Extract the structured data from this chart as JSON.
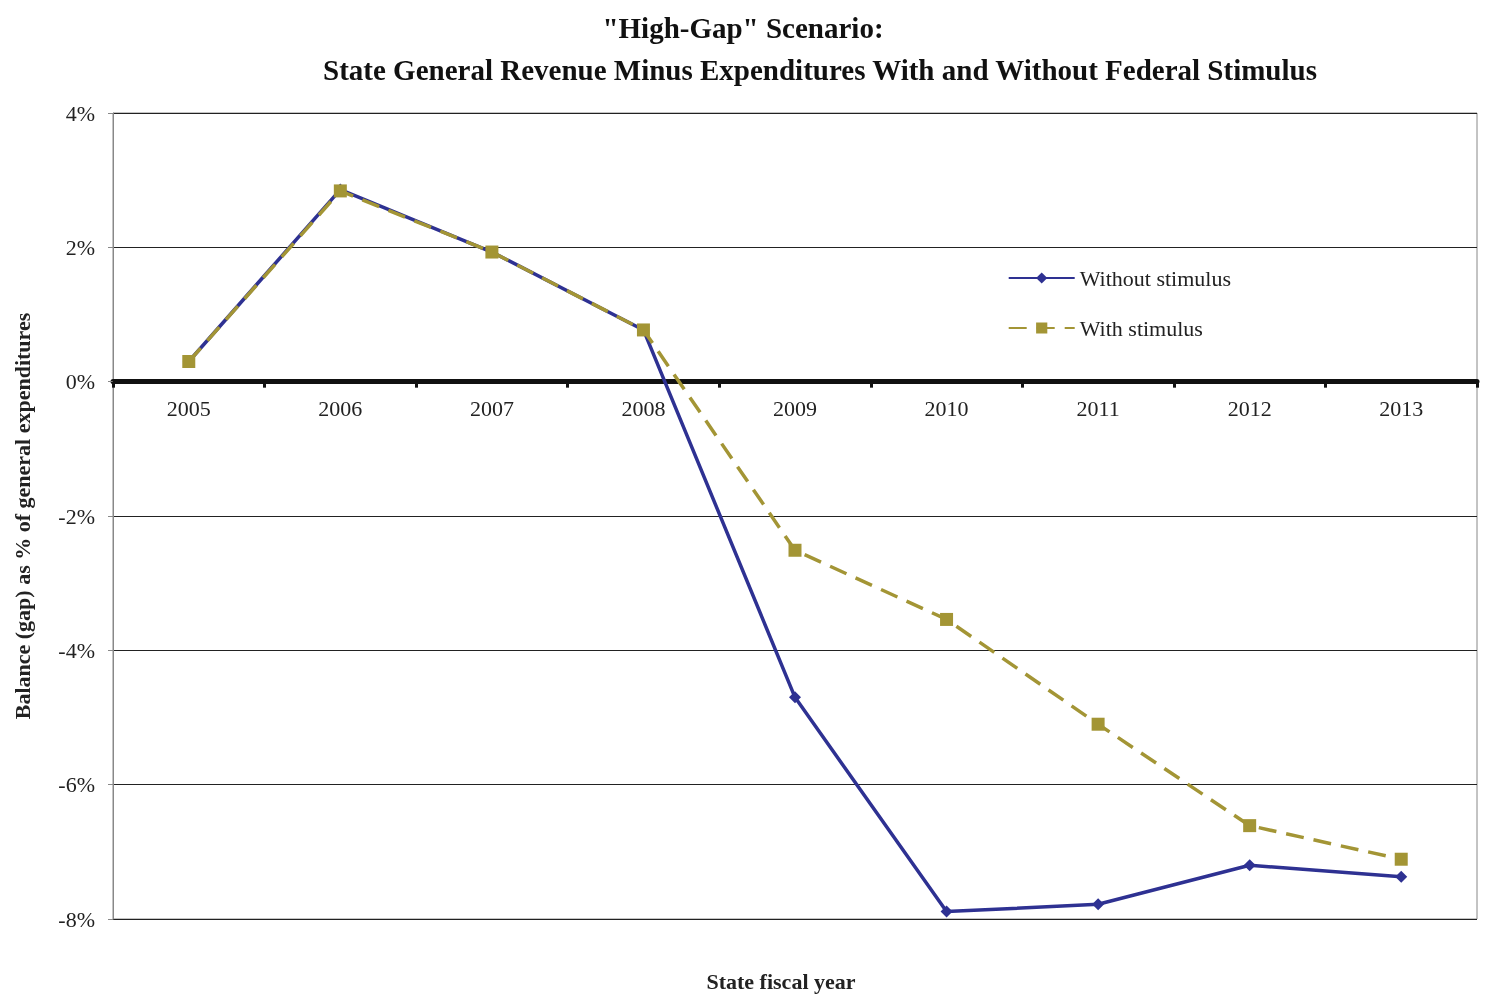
{
  "chart_data": {
    "type": "line",
    "title": "\"High-Gap\" Scenario:",
    "subtitle": "State General Revenue Minus Expenditures With and Without Federal Stimulus",
    "xlabel": "State fiscal year",
    "ylabel": "Balance (gap) as % of general expenditures",
    "categories": [
      "2005",
      "2006",
      "2007",
      "2008",
      "2009",
      "2010",
      "2011",
      "2012",
      "2013"
    ],
    "series": [
      {
        "name": "Without stimulus",
        "color": "#2e3192",
        "marker": "diamond",
        "line_style": "solid",
        "values": [
          0.3,
          2.86,
          1.93,
          0.77,
          -4.7,
          -7.89,
          -7.78,
          -7.2,
          -7.37
        ]
      },
      {
        "name": "With stimulus",
        "color": "#a39535",
        "marker": "square",
        "line_style": "dashed",
        "values": [
          0.3,
          2.84,
          1.93,
          0.77,
          -2.51,
          -3.54,
          -5.1,
          -6.61,
          -7.11
        ]
      }
    ],
    "ylim": [
      -8,
      4
    ],
    "yticks": [
      {
        "value": -8,
        "label": "-8%"
      },
      {
        "value": -6,
        "label": "-6%"
      },
      {
        "value": -4,
        "label": "-4%"
      },
      {
        "value": -2,
        "label": "-2%"
      },
      {
        "value": 0,
        "label": "0%"
      },
      {
        "value": 2,
        "label": "2%"
      },
      {
        "value": 4,
        "label": "4%"
      }
    ],
    "grid": "y",
    "legend": "top right"
  }
}
